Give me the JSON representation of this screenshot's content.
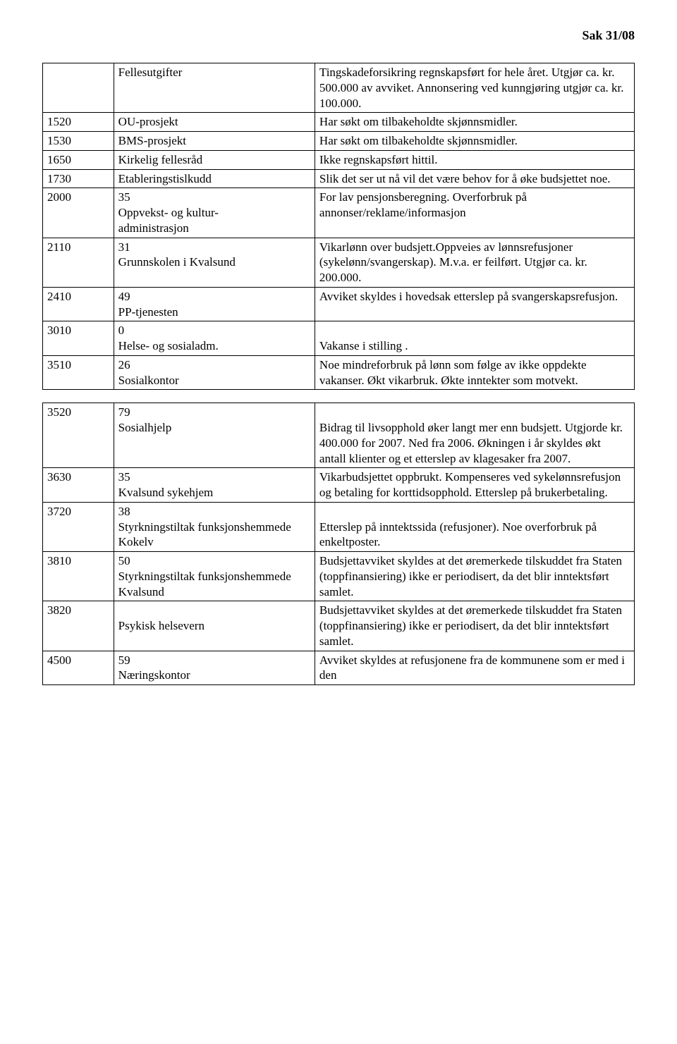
{
  "header": {
    "title": "Sak 31/08"
  },
  "table1": {
    "rows": [
      {
        "c1": "",
        "c2": "Fellesutgifter",
        "c3": "Tingskadeforsikring regnskapsført for hele året. Utgjør ca. kr. 500.000 av avviket. Annonsering ved kunngjøring utgjør ca. kr. 100.000."
      },
      {
        "c1": "1520",
        "c2": "OU-prosjekt",
        "c3": "Har søkt om tilbakeholdte skjønnsmidler."
      },
      {
        "c1": "1530",
        "c2": "BMS-prosjekt",
        "c3": "Har søkt om tilbakeholdte skjønnsmidler."
      },
      {
        "c1": "1650",
        "c2": "Kirkelig fellesråd",
        "c3": "Ikke regnskapsført hittil."
      },
      {
        "c1": "1730",
        "c2": "Etableringstislkudd",
        "c3": "Slik det ser ut nå vil det være behov for å øke budsjettet noe."
      },
      {
        "c1": "2000",
        "c2": "35\nOppvekst- og kultur-\nadministrasjon",
        "c3": "For lav pensjonsberegning. Overforbruk på annonser/reklame/informasjon"
      },
      {
        "c1": "2110",
        "c2": "31\nGrunnskolen i Kvalsund",
        "c3": "Vikarlønn over budsjett.Oppveies av lønnsrefusjoner (sykelønn/svangerskap). M.v.a. er feilført. Utgjør ca. kr. 200.000."
      },
      {
        "c1": "2410",
        "c2": "49\nPP-tjenesten",
        "c3": "Avviket skyldes i hovedsak etterslep på svangerskapsrefusjon."
      },
      {
        "c1": "3010",
        "c2": "0\nHelse- og sosialadm.",
        "c3": "\nVakanse i stilling ."
      },
      {
        "c1": "3510",
        "c2": "26\nSosialkontor",
        "c3": "Noe mindreforbruk på lønn som følge av ikke oppdekte vakanser. Økt vikarbruk. Økte inntekter som motvekt."
      }
    ]
  },
  "table2": {
    "rows": [
      {
        "c1": "3520",
        "c2": "79\nSosialhjelp",
        "c3": "\nBidrag til livsopphold øker langt mer enn budsjett. Utgjorde kr. 400.000 for 2007. Ned fra 2006. Økningen i år skyldes økt antall klienter og  et etterslep av klagesaker fra 2007."
      },
      {
        "c1": "3630",
        "c2": "35\nKvalsund sykehjem",
        "c3": "Vikarbudsjettet oppbrukt. Kompenseres ved sykelønnsrefusjon og betaling for korttidsopphold. Etterslep på brukerbetaling."
      },
      {
        "c1": "3720",
        "c2": "38\nStyrkningstiltak funksjonshemmede Kokelv",
        "c3": "\nEtterslep på inntektssida (refusjoner). Noe overforbruk på enkeltposter."
      },
      {
        "c1": "3810",
        "c2": "50\nStyrkningstiltak funksjonshemmede Kvalsund",
        "c3": "Budsjettavviket skyldes at det øremerkede tilskuddet fra Staten (toppfinansiering) ikke er periodisert, da det blir inntektsført samlet."
      },
      {
        "c1": "3820",
        "c2": "\nPsykisk helsevern",
        "c3": "Budsjettavviket skyldes at det øremerkede tilskuddet fra Staten (toppfinansiering) ikke er periodisert, da det blir inntektsført samlet."
      },
      {
        "c1": "4500",
        "c2": "59\nNæringskontor",
        "c3": "Avviket skyldes at refusjonene fra de kommunene som er med i den"
      }
    ]
  }
}
